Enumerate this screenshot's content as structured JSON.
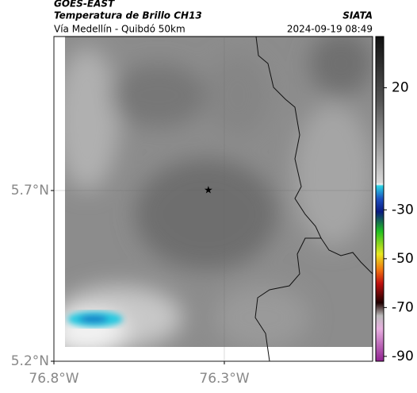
{
  "header": {
    "product": "GOES-EAST",
    "title": "Temperatura de Brillo CH13",
    "source": "SIATA",
    "route": "Vía Medellín - Quibdó 50km",
    "timestamp": "2024-09-19 08:49"
  },
  "map": {
    "xlim": [
      -76.8,
      -75.865
    ],
    "ylim": [
      5.2,
      6.151
    ],
    "xticks": [
      {
        "value": -76.8,
        "label": "76.8°W"
      },
      {
        "value": -76.3,
        "label": "76.3°W"
      }
    ],
    "yticks": [
      {
        "value": 5.2,
        "label": "5.2°N"
      },
      {
        "value": 5.7,
        "label": "5.7°N"
      }
    ],
    "grid": true,
    "marker": {
      "lon": -76.347,
      "lat": 5.7
    }
  },
  "colorbar": {
    "clim": [
      -92,
      41
    ],
    "ticks": [
      20,
      -30,
      -50,
      -70,
      -90
    ]
  }
}
